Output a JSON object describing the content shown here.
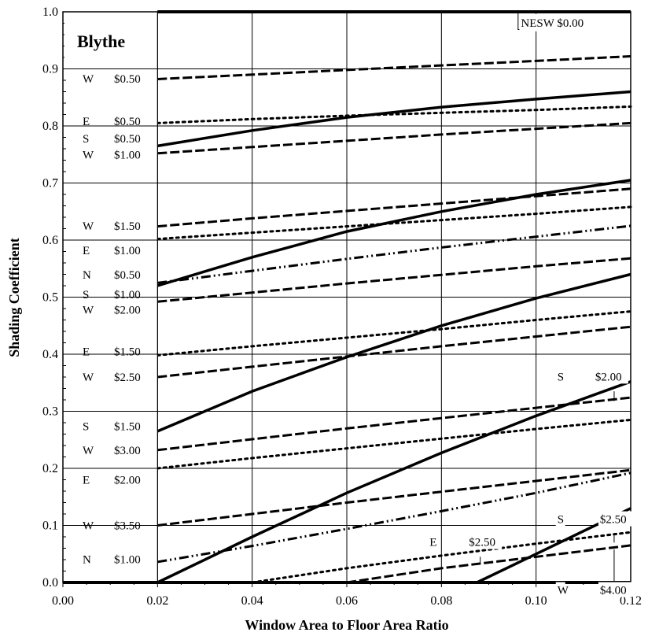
{
  "chart_data": {
    "type": "line",
    "title": "Blythe",
    "xlabel": "Window Area to Floor Area Ratio",
    "ylabel": "Shading Coefficient",
    "xlim": [
      0.0,
      0.12
    ],
    "ylim": [
      0.0,
      1.0
    ],
    "x_ticks": [
      "0.00",
      "0.02",
      "0.04",
      "0.06",
      "0.08",
      "0.10",
      "0.12"
    ],
    "y_ticks": [
      "0.0",
      "0.1",
      "0.2",
      "0.3",
      "0.4",
      "0.5",
      "0.6",
      "0.7",
      "0.8",
      "0.9",
      "1.0"
    ],
    "grid": true,
    "orientation_styles": {
      "N": "dashdot",
      "E": "dotted",
      "S": "solid",
      "W": "dashed",
      "NESW": "solid"
    },
    "series": [
      {
        "orientation": "NESW",
        "cost": "$0.00",
        "style": "solid",
        "x": [
          0.02,
          0.12
        ],
        "y": [
          1.0,
          1.0
        ]
      },
      {
        "orientation": "W",
        "cost": "$0.50",
        "style": "dashed",
        "x": [
          0.02,
          0.04,
          0.06,
          0.08,
          0.1,
          0.12
        ],
        "y": [
          0.882,
          0.89,
          0.898,
          0.906,
          0.914,
          0.922
        ]
      },
      {
        "orientation": "E",
        "cost": "$0.50",
        "style": "dotted",
        "x": [
          0.02,
          0.04,
          0.06,
          0.08,
          0.1,
          0.12
        ],
        "y": [
          0.805,
          0.812,
          0.818,
          0.823,
          0.828,
          0.834
        ]
      },
      {
        "orientation": "S",
        "cost": "$0.50",
        "style": "solid",
        "x": [
          0.02,
          0.04,
          0.06,
          0.08,
          0.1,
          0.12
        ],
        "y": [
          0.765,
          0.792,
          0.815,
          0.833,
          0.847,
          0.86
        ]
      },
      {
        "orientation": "W",
        "cost": "$1.00",
        "style": "dashed",
        "x": [
          0.02,
          0.04,
          0.06,
          0.08,
          0.1,
          0.12
        ],
        "y": [
          0.752,
          0.763,
          0.774,
          0.785,
          0.795,
          0.805
        ]
      },
      {
        "orientation": "W",
        "cost": "$1.50",
        "style": "dashed",
        "x": [
          0.02,
          0.04,
          0.06,
          0.08,
          0.1,
          0.12
        ],
        "y": [
          0.624,
          0.638,
          0.651,
          0.664,
          0.677,
          0.69
        ]
      },
      {
        "orientation": "E",
        "cost": "$1.00",
        "style": "dotted",
        "x": [
          0.02,
          0.04,
          0.06,
          0.08,
          0.1,
          0.12
        ],
        "y": [
          0.602,
          0.613,
          0.624,
          0.635,
          0.646,
          0.658
        ]
      },
      {
        "orientation": "S",
        "cost": "$1.00",
        "style": "solid",
        "x": [
          0.02,
          0.04,
          0.06,
          0.08,
          0.1,
          0.12
        ],
        "y": [
          0.52,
          0.57,
          0.615,
          0.65,
          0.68,
          0.705
        ]
      },
      {
        "orientation": "N",
        "cost": "$0.50",
        "style": "dashdot",
        "x": [
          0.02,
          0.04,
          0.06,
          0.08,
          0.1,
          0.12
        ],
        "y": [
          0.525,
          0.546,
          0.567,
          0.587,
          0.606,
          0.625
        ]
      },
      {
        "orientation": "W",
        "cost": "$2.00",
        "style": "dashed",
        "x": [
          0.02,
          0.04,
          0.06,
          0.08,
          0.1,
          0.12
        ],
        "y": [
          0.492,
          0.508,
          0.524,
          0.539,
          0.554,
          0.568
        ]
      },
      {
        "orientation": "E",
        "cost": "$1.50",
        "style": "dotted",
        "x": [
          0.02,
          0.04,
          0.06,
          0.08,
          0.1,
          0.12
        ],
        "y": [
          0.398,
          0.414,
          0.429,
          0.444,
          0.46,
          0.475
        ]
      },
      {
        "orientation": "W",
        "cost": "$2.50",
        "style": "dashed",
        "x": [
          0.02,
          0.04,
          0.06,
          0.08,
          0.1,
          0.12
        ],
        "y": [
          0.36,
          0.378,
          0.396,
          0.414,
          0.431,
          0.448
        ]
      },
      {
        "orientation": "S",
        "cost": "$1.50",
        "style": "solid",
        "x": [
          0.02,
          0.04,
          0.06,
          0.08,
          0.1,
          0.12
        ],
        "y": [
          0.265,
          0.335,
          0.395,
          0.45,
          0.498,
          0.54
        ]
      },
      {
        "orientation": "W",
        "cost": "$3.00",
        "style": "dashed",
        "x": [
          0.02,
          0.04,
          0.06,
          0.08,
          0.1,
          0.12
        ],
        "y": [
          0.232,
          0.251,
          0.27,
          0.288,
          0.306,
          0.324
        ]
      },
      {
        "orientation": "E",
        "cost": "$2.00",
        "style": "dotted",
        "x": [
          0.02,
          0.04,
          0.06,
          0.08,
          0.1,
          0.12
        ],
        "y": [
          0.2,
          0.218,
          0.235,
          0.252,
          0.269,
          0.285
        ]
      },
      {
        "orientation": "S",
        "cost": "$2.00",
        "style": "solid",
        "x": [
          0.02,
          0.04,
          0.06,
          0.08,
          0.1,
          0.12
        ],
        "y": [
          0.0,
          0.08,
          0.157,
          0.227,
          0.292,
          0.352
        ]
      },
      {
        "orientation": "W",
        "cost": "$3.50",
        "style": "dashed",
        "x": [
          0.02,
          0.04,
          0.06,
          0.08,
          0.1,
          0.12
        ],
        "y": [
          0.1,
          0.12,
          0.14,
          0.159,
          0.178,
          0.197
        ]
      },
      {
        "orientation": "N",
        "cost": "$1.00",
        "style": "dashdot",
        "x": [
          0.02,
          0.04,
          0.06,
          0.08,
          0.1,
          0.12
        ],
        "y": [
          0.036,
          0.064,
          0.094,
          0.125,
          0.157,
          0.192
        ]
      },
      {
        "orientation": "E",
        "cost": "$2.50",
        "style": "dotted",
        "x": [
          0.04,
          0.06,
          0.08,
          0.1,
          0.12
        ],
        "y": [
          0.0,
          0.025,
          0.047,
          0.068,
          0.088
        ]
      },
      {
        "orientation": "W",
        "cost": "$4.00",
        "style": "dashed",
        "x": [
          0.06,
          0.08,
          0.1,
          0.12
        ],
        "y": [
          0.0,
          0.025,
          0.045,
          0.065
        ]
      },
      {
        "orientation": "S",
        "cost": "$2.50",
        "style": "solid",
        "x": [
          0.0875,
          0.1,
          0.12
        ],
        "y": [
          0.0,
          0.05,
          0.13
        ]
      }
    ],
    "left_labels": [
      {
        "orientation": "W",
        "cost": "$0.50"
      },
      {
        "orientation": "E",
        "cost": "$0.50"
      },
      {
        "orientation": "S",
        "cost": "$0.50"
      },
      {
        "orientation": "W",
        "cost": "$1.00"
      },
      {
        "orientation": "W",
        "cost": "$1.50"
      },
      {
        "orientation": "E",
        "cost": "$1.00"
      },
      {
        "orientation": "N",
        "cost": "$0.50"
      },
      {
        "orientation": "S",
        "cost": "$1.00"
      },
      {
        "orientation": "W",
        "cost": "$2.00"
      },
      {
        "orientation": "E",
        "cost": "$1.50"
      },
      {
        "orientation": "W",
        "cost": "$2.50"
      },
      {
        "orientation": "S",
        "cost": "$1.50"
      },
      {
        "orientation": "W",
        "cost": "$3.00"
      },
      {
        "orientation": "E",
        "cost": "$2.00"
      },
      {
        "orientation": "W",
        "cost": "$3.50"
      },
      {
        "orientation": "N",
        "cost": "$1.00"
      }
    ],
    "annotations": [
      {
        "text": "NESW  $0.00",
        "x": 0.0968,
        "y": 0.974
      },
      {
        "text": "S",
        "x": 0.1045,
        "y": 0.354
      },
      {
        "text": "$2.00",
        "x": 0.1125,
        "y": 0.354
      },
      {
        "text": "S",
        "x": 0.1045,
        "y": 0.104
      },
      {
        "text": "$2.50",
        "x": 0.1135,
        "y": 0.104
      },
      {
        "text": "E",
        "x": 0.0775,
        "y": 0.064
      },
      {
        "text": "$2.50",
        "x": 0.0858,
        "y": 0.064
      },
      {
        "text": "W",
        "x": 0.1045,
        "y": -0.02
      },
      {
        "text": "$4.00",
        "x": 0.1135,
        "y": -0.02
      }
    ]
  }
}
